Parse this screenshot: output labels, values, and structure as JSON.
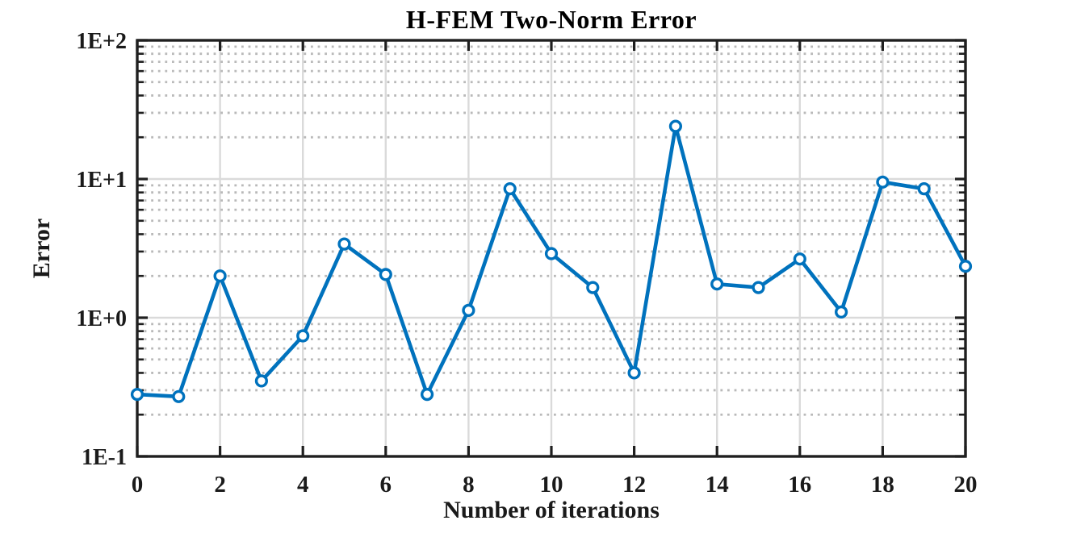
{
  "chart_data": {
    "type": "line",
    "title": "H-FEM Two-Norm Error",
    "xlabel": "Number of iterations",
    "ylabel": "Error",
    "x": [
      0,
      1,
      2,
      3,
      4,
      5,
      6,
      7,
      8,
      9,
      10,
      11,
      12,
      13,
      14,
      15,
      16,
      17,
      18,
      19,
      20
    ],
    "y": [
      0.28,
      0.27,
      2.0,
      0.35,
      0.74,
      3.4,
      2.05,
      0.28,
      1.13,
      8.5,
      2.9,
      1.65,
      0.4,
      24,
      1.75,
      1.65,
      2.65,
      1.1,
      9.5,
      8.5,
      2.35
    ],
    "xlim": [
      0,
      20
    ],
    "ylim": [
      0.1,
      100
    ],
    "yscale": "log",
    "x_ticks": [
      0,
      2,
      4,
      6,
      8,
      10,
      12,
      14,
      16,
      18,
      20
    ],
    "x_tick_labels": [
      "0",
      "2",
      "4",
      "6",
      "8",
      "10",
      "12",
      "14",
      "16",
      "18",
      "20"
    ],
    "y_ticks": [
      {
        "value": 0.1,
        "label": "1E-1"
      },
      {
        "value": 1,
        "label": "1E+0"
      },
      {
        "value": 10,
        "label": "1E+1"
      },
      {
        "value": 100,
        "label": "1E+2"
      }
    ],
    "grid": {
      "major": true,
      "minor": true,
      "legend": "none"
    },
    "marker": "circle",
    "colors": {
      "line": "#0072BD",
      "marker_edge": "#0072BD",
      "marker_fill": "#ffffff",
      "axis": "#1f1f1f",
      "grid_major": "#dadada",
      "grid_minor": "#b9b9b9",
      "background": "#ffffff"
    }
  }
}
